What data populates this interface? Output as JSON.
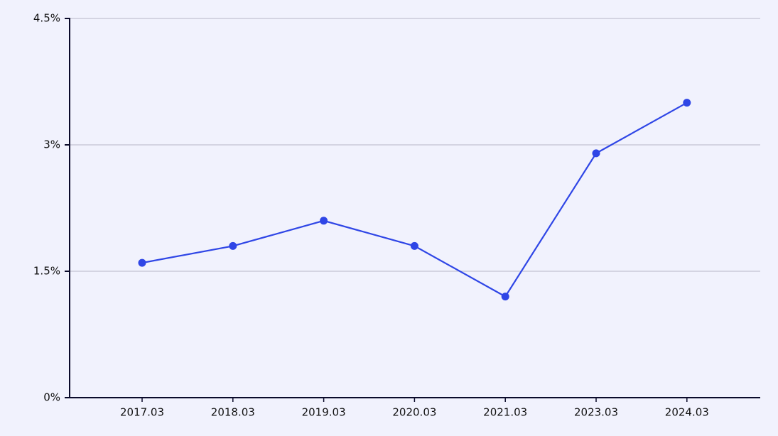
{
  "chart_data": {
    "type": "line",
    "categories": [
      "2017.03",
      "2018.03",
      "2019.03",
      "2020.03",
      "2021.03",
      "2023.03",
      "2024.03"
    ],
    "series": [
      {
        "color": "#2f46e6",
        "values": [
          1.6,
          1.8,
          2.1,
          1.8,
          1.2,
          2.9,
          3.5
        ]
      }
    ],
    "ylim": [
      0,
      4.5
    ],
    "yticks": [
      {
        "value": 0,
        "label": "0%"
      },
      {
        "value": 1.5,
        "label": "1.5%"
      },
      {
        "value": 3,
        "label": "3%"
      },
      {
        "value": 4.5,
        "label": "4.5%"
      }
    ],
    "grid": true
  }
}
